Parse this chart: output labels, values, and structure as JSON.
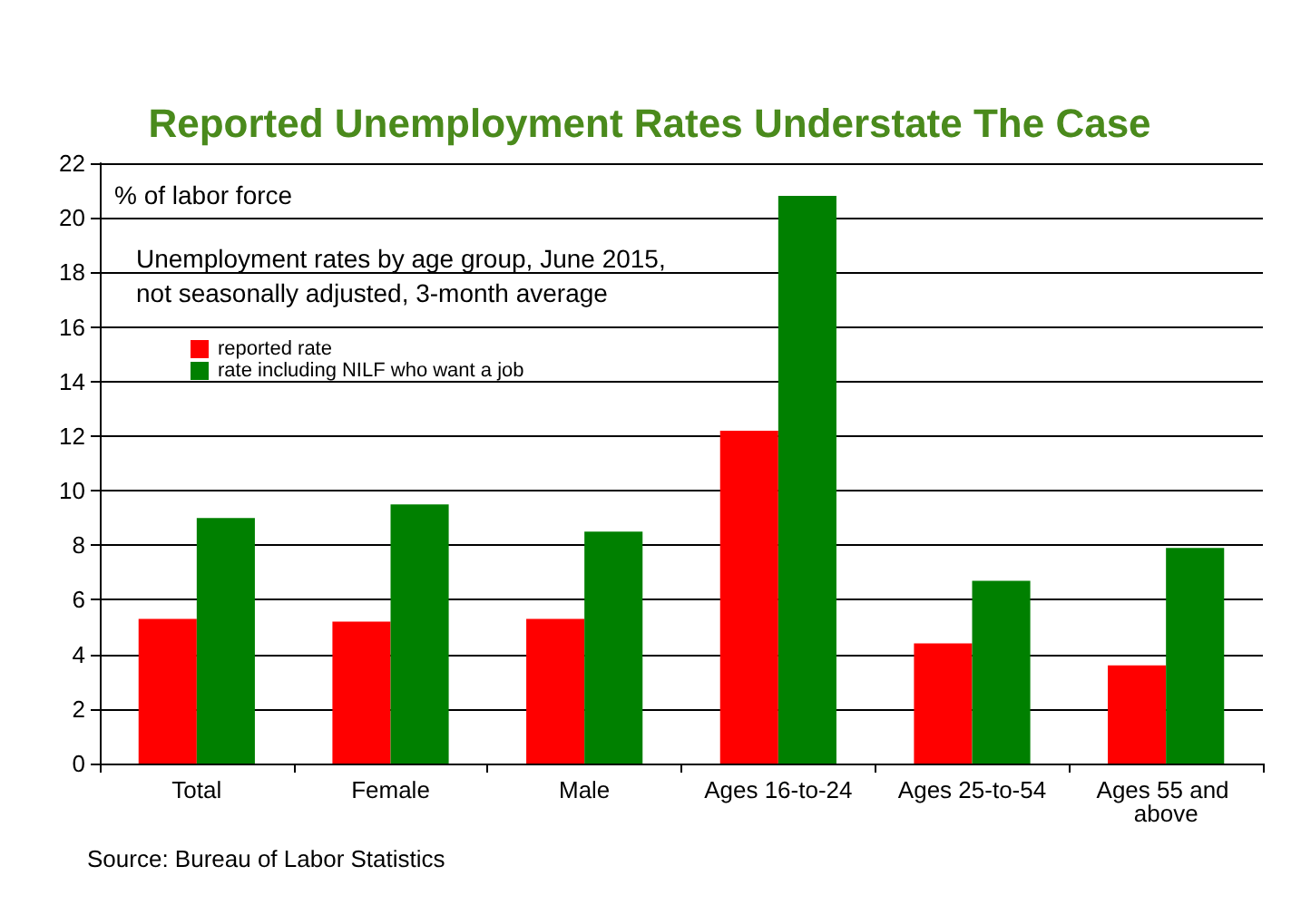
{
  "chart_data": {
    "type": "bar",
    "title": "Reported Unemployment Rates Understate The Case",
    "categories": [
      "Total",
      "Female",
      "Male",
      "Ages 16-to-24",
      "Ages 25-to-54",
      "Ages 55 and above"
    ],
    "series": [
      {
        "name": "reported rate",
        "color": "#ff0000",
        "values": [
          5.3,
          5.2,
          5.3,
          12.2,
          4.4,
          3.6
        ]
      },
      {
        "name": "rate including NILF who want a job",
        "color": "#008000",
        "values": [
          9.0,
          9.5,
          8.5,
          20.8,
          6.7,
          7.9
        ]
      }
    ],
    "ylim": [
      0,
      22
    ],
    "yticks": [
      0,
      2,
      4,
      6,
      8,
      10,
      12,
      14,
      16,
      18,
      20,
      22
    ],
    "grid": "y",
    "legend": "top left",
    "annotations": [
      "% of labor force",
      "Unemployment rates by age group, June 2015,\nnot seasonally adjusted, 3-month average",
      "Source: Bureau of Labor Statistics"
    ]
  }
}
